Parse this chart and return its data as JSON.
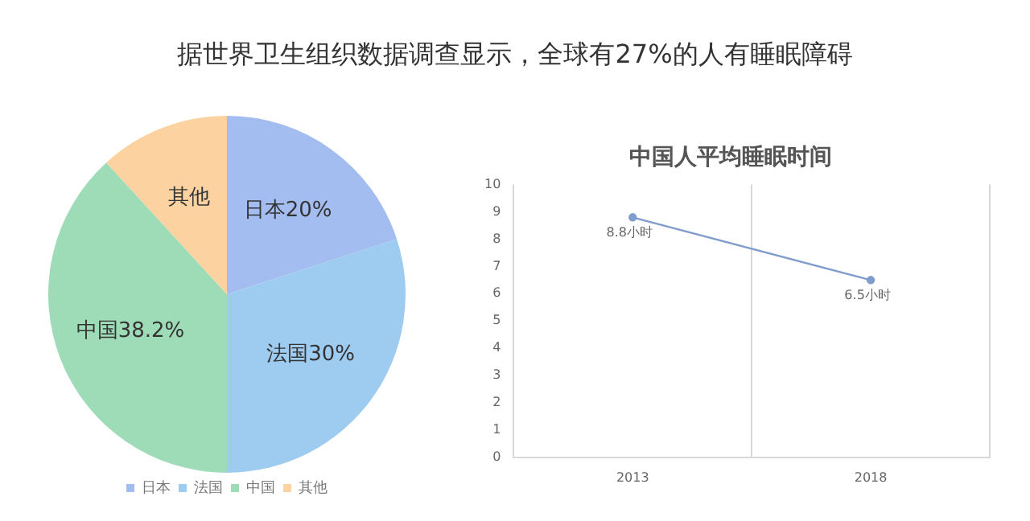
{
  "chart_data": [
    {
      "type": "pie",
      "title": "据世界卫生组织数据调查显示，全球有27%的人有睡眠障碍",
      "categories": [
        "日本",
        "法国",
        "中国",
        "其他"
      ],
      "values": [
        20,
        30,
        38.2,
        11.8
      ],
      "colors": [
        "#a4bdf0",
        "#9ecbf0",
        "#9edcb8",
        "#fcd3a0"
      ],
      "value_labels": [
        "日本20%",
        "法国30%",
        "中国38.2%",
        "其他"
      ],
      "legend": "bottom"
    },
    {
      "type": "line",
      "title": "中国人平均睡眠时间",
      "categories": [
        "2013",
        "2018"
      ],
      "series": [
        {
          "color": "#7f9ccc",
          "values": [
            8.8,
            6.5
          ],
          "value_labels": [
            "8.8小时",
            "6.5小时"
          ]
        }
      ],
      "ylim": [
        0,
        10
      ],
      "yticks": [
        0,
        1,
        2,
        3,
        4,
        5,
        6,
        7,
        8,
        9,
        10
      ],
      "grid": "x",
      "marker": "circle",
      "line_style": "solid",
      "legend": false
    }
  ]
}
